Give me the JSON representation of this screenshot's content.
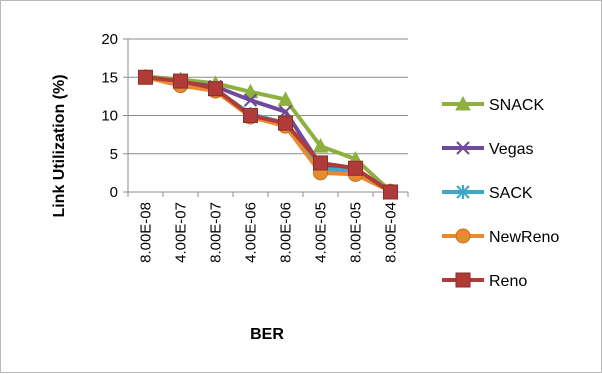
{
  "chart_data": {
    "type": "line",
    "title": "",
    "xlabel": "BER",
    "ylabel": "Link Utilization (%)",
    "categories": [
      "8.00E-08",
      "4.00E-07",
      "8.00E-07",
      "4.00E-06",
      "8.00E-06",
      "4.00E-05",
      "8.00E-05",
      "8.00E-04"
    ],
    "ylim": [
      0,
      20
    ],
    "yticks": [
      0,
      5,
      10,
      15,
      20
    ],
    "grid": "horizontal",
    "legend_position": "right",
    "series": [
      {
        "name": "SNACK",
        "color": "#8db03f",
        "marker": "triangle",
        "values": [
          15.1,
          14.7,
          14.2,
          13.1,
          12.1,
          6.0,
          4.3,
          0.1
        ]
      },
      {
        "name": "Vegas",
        "color": "#6d4a9a",
        "marker": "x",
        "values": [
          15.0,
          14.4,
          13.8,
          12.0,
          10.5,
          3.5,
          3.0,
          0.1
        ]
      },
      {
        "name": "SACK",
        "color": "#3fa7c6",
        "marker": "star",
        "values": [
          15.0,
          14.2,
          13.4,
          10.2,
          9.0,
          3.0,
          2.8,
          0.1
        ]
      },
      {
        "name": "NewReno",
        "color": "#e88a30",
        "marker": "circle",
        "values": [
          15.0,
          13.9,
          13.2,
          9.8,
          8.6,
          2.5,
          2.3,
          0.1
        ]
      },
      {
        "name": "Reno",
        "color": "#b03c3a",
        "marker": "square",
        "values": [
          15.0,
          14.5,
          13.5,
          10.0,
          9.0,
          3.8,
          3.1,
          0.0
        ]
      }
    ]
  }
}
